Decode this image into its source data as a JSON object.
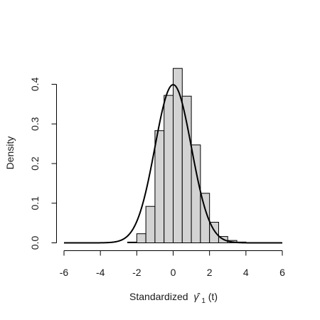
{
  "chart_data": {
    "type": "bar",
    "subtype": "histogram-with-density-curve",
    "xlabel": "Standardized",
    "xlabel_symbol": "γ̂",
    "xlabel_subscript": "1",
    "xlabel_suffix": "(t)",
    "ylabel": "Density",
    "xlim": [
      -6,
      6
    ],
    "ylim": [
      0,
      0.44
    ],
    "x_ticks": [
      "-6",
      "-4",
      "-2",
      "0",
      "2",
      "4",
      "6"
    ],
    "y_ticks": [
      "0.0",
      "0.1",
      "0.2",
      "0.3",
      "0.4"
    ],
    "bin_width": 0.5,
    "bins": [
      {
        "start": -2.5,
        "end": -2.0,
        "density": 0.002
      },
      {
        "start": -2.0,
        "end": -1.5,
        "density": 0.023
      },
      {
        "start": -1.5,
        "end": -1.0,
        "density": 0.092
      },
      {
        "start": -1.0,
        "end": -0.5,
        "density": 0.283
      },
      {
        "start": -0.5,
        "end": 0.0,
        "density": 0.372
      },
      {
        "start": 0.0,
        "end": 0.5,
        "density": 0.44
      },
      {
        "start": 0.5,
        "end": 1.0,
        "density": 0.37
      },
      {
        "start": 1.0,
        "end": 1.5,
        "density": 0.247
      },
      {
        "start": 1.5,
        "end": 2.0,
        "density": 0.125
      },
      {
        "start": 2.0,
        "end": 2.5,
        "density": 0.052
      },
      {
        "start": 2.5,
        "end": 3.0,
        "density": 0.016
      },
      {
        "start": 3.0,
        "end": 3.5,
        "density": 0.006
      },
      {
        "start": 3.5,
        "end": 4.0,
        "density": 0.002
      }
    ],
    "curve": {
      "distribution": "standard normal",
      "mean": 0,
      "sd": 1,
      "peak": 0.399
    },
    "grid": false,
    "colors": {
      "bar_fill": "#d3d3d3",
      "bar_stroke": "#000000",
      "curve": "#000000"
    }
  }
}
